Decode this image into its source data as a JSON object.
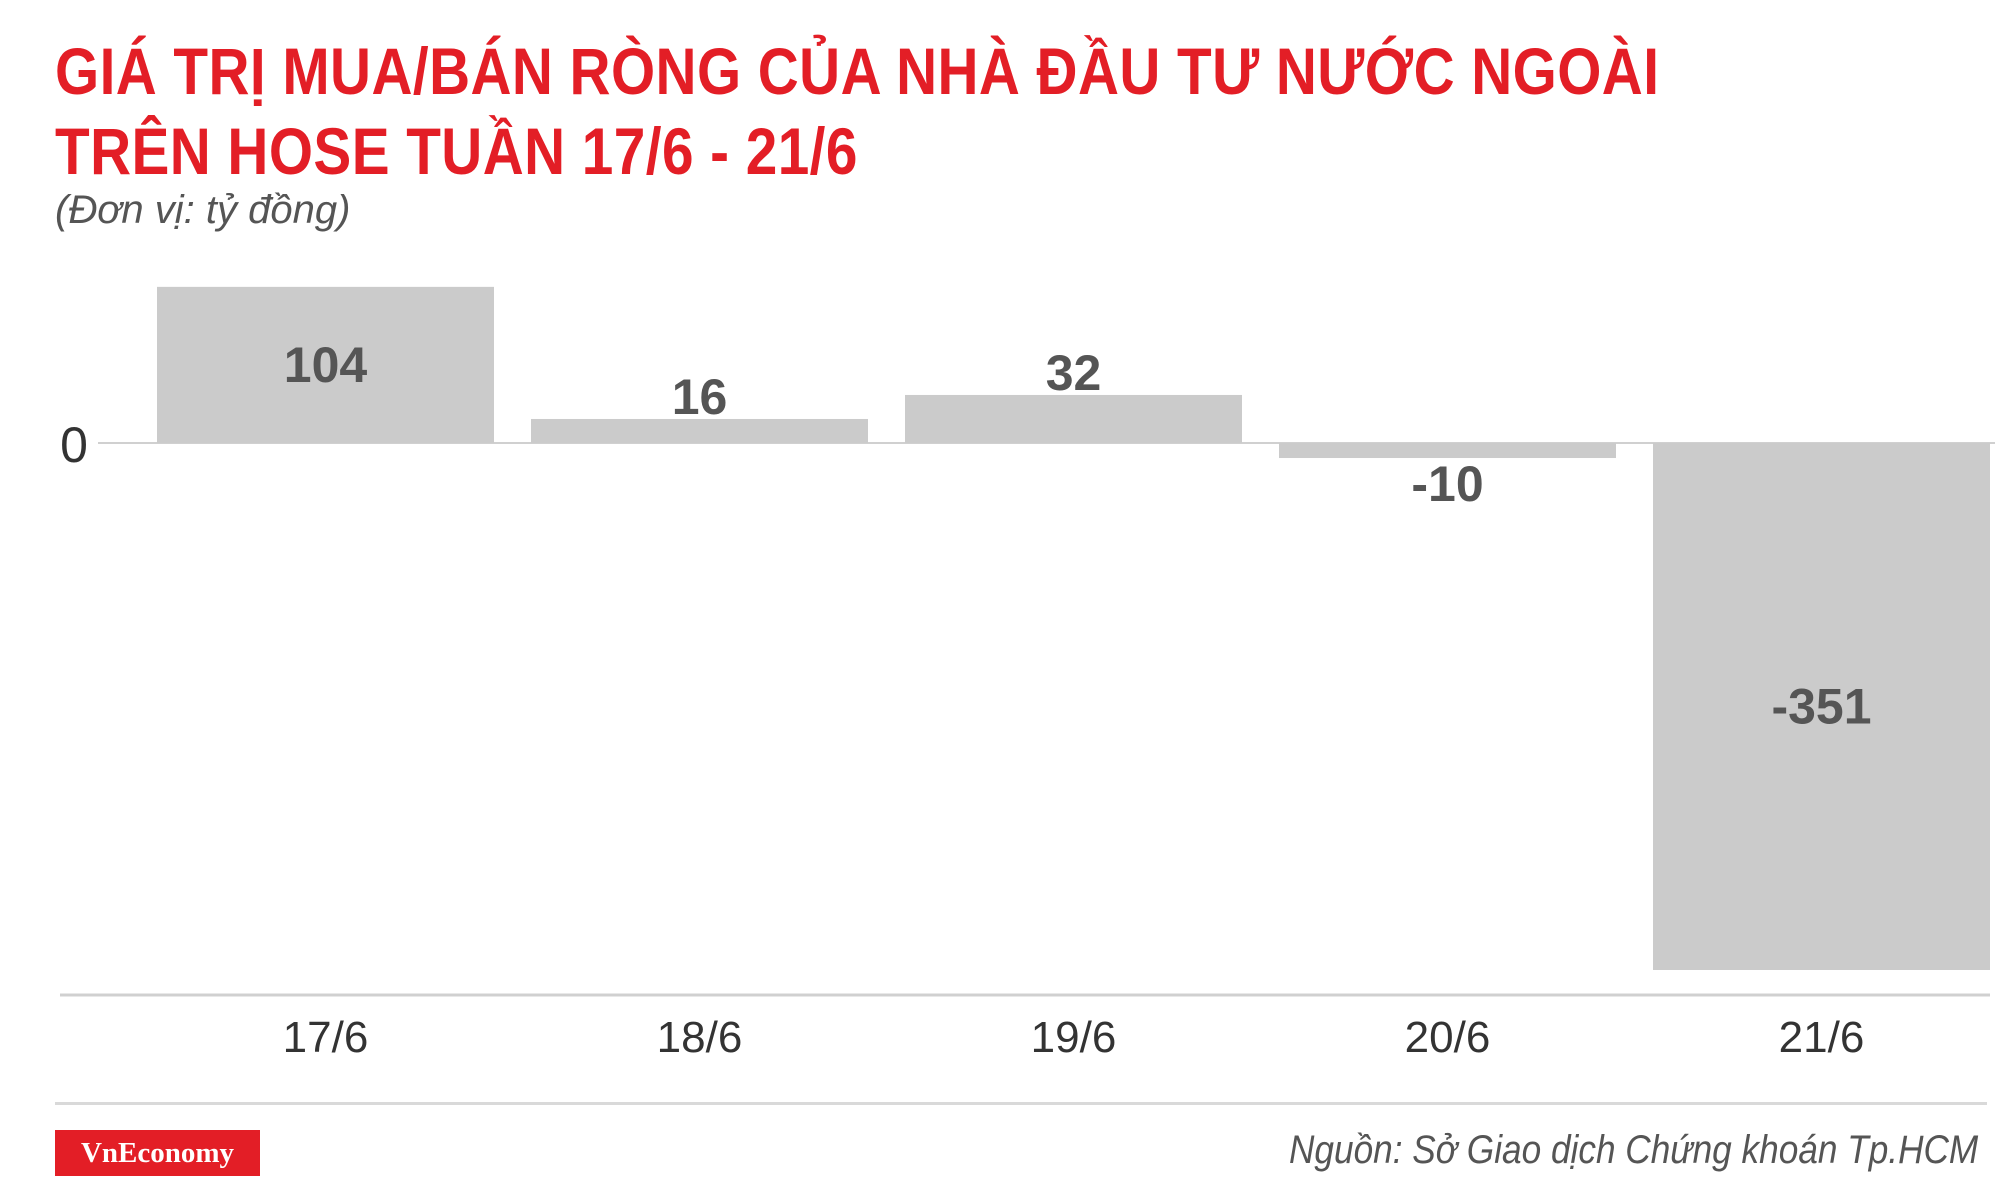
{
  "header": {
    "title_line1": "GIÁ TRỊ MUA/BÁN RÒNG CỦA NHÀ ĐẦU TƯ NƯỚC NGOÀI",
    "title_line2": "TRÊN HOSE TUẦN 17/6 - 21/6",
    "unit": "(Đơn vị: tỷ đồng)"
  },
  "footer": {
    "logo": "VnEconomy",
    "source": "Nguồn: Sở Giao dịch Chứng khoán Tp.HCM"
  },
  "colors": {
    "title": "#e31e26",
    "bar": "#cbcbcb",
    "label": "#555555",
    "logo_bg": "#e31e26"
  },
  "chart_data": {
    "type": "bar",
    "categories": [
      "17/6",
      "18/6",
      "19/6",
      "20/6",
      "21/6"
    ],
    "values": [
      104,
      16,
      32,
      -10,
      -351
    ],
    "data_labels": [
      "104",
      "16",
      "32",
      "-10",
      "-351"
    ],
    "y_tick_labels": [
      "0"
    ],
    "ylim": [
      -351,
      104
    ],
    "grid": false,
    "legend": "none"
  }
}
